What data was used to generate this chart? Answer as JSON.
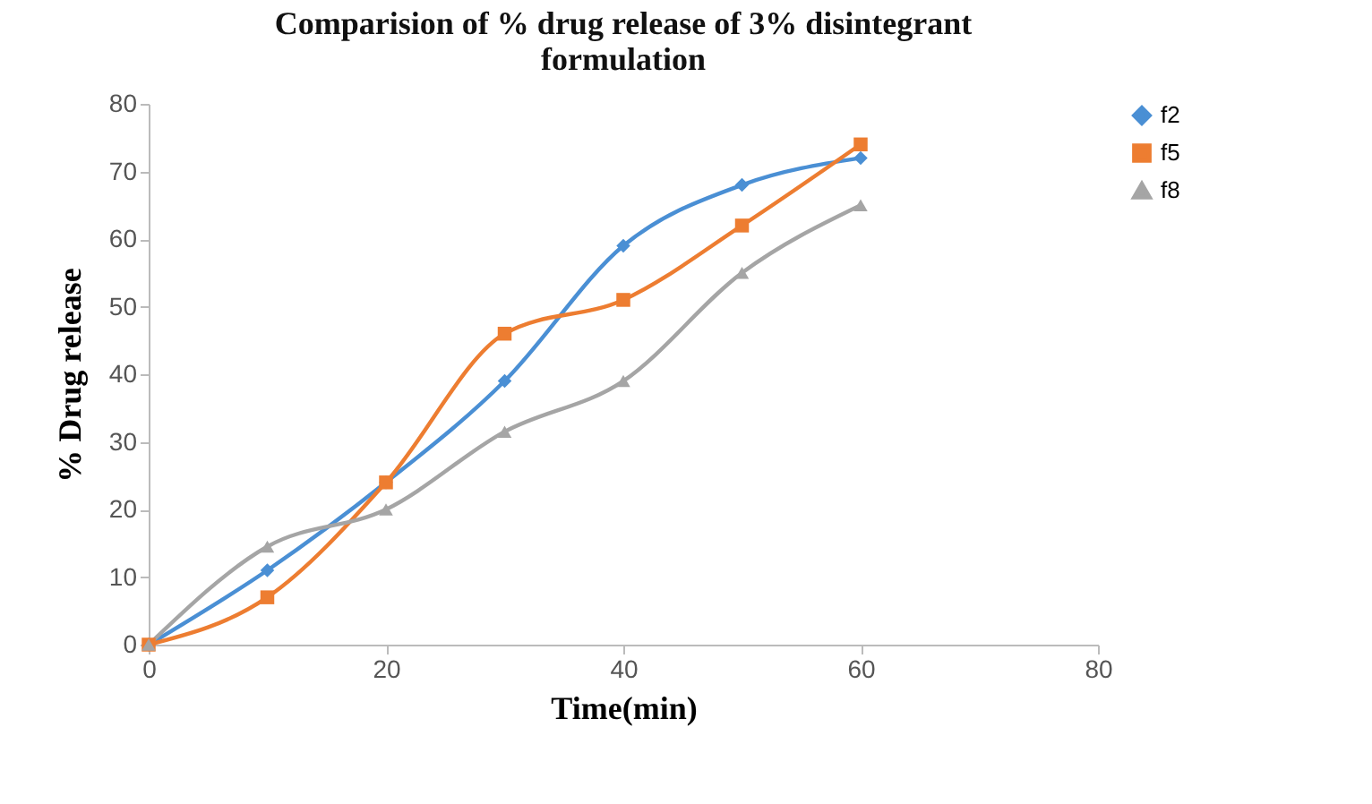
{
  "chart_data": {
    "type": "line",
    "title": [
      "Comparision of % drug release of 3% disintegrant",
      "formulation"
    ],
    "xlabel": "Time(min)",
    "ylabel": "% Drug release",
    "x": [
      0,
      10,
      20,
      30,
      40,
      50,
      60
    ],
    "series": [
      {
        "name": "f2",
        "color": "#4a8fd4",
        "marker": "diamond",
        "values": [
          0,
          11,
          24,
          39,
          59,
          68,
          72
        ]
      },
      {
        "name": "f5",
        "color": "#ed7d31",
        "marker": "square",
        "values": [
          0,
          7,
          24,
          46,
          51,
          62,
          74
        ]
      },
      {
        "name": "f8",
        "color": "#a5a5a5",
        "marker": "triangle",
        "values": [
          0,
          14.5,
          20,
          31.5,
          39,
          55,
          65
        ]
      }
    ],
    "xlim": [
      0,
      80
    ],
    "xticks": [
      0,
      20,
      40,
      60,
      80
    ],
    "ylim": [
      0,
      80
    ],
    "yticks": [
      0,
      10,
      20,
      30,
      40,
      50,
      60,
      70,
      80
    ],
    "grid": false,
    "legend": "right"
  }
}
